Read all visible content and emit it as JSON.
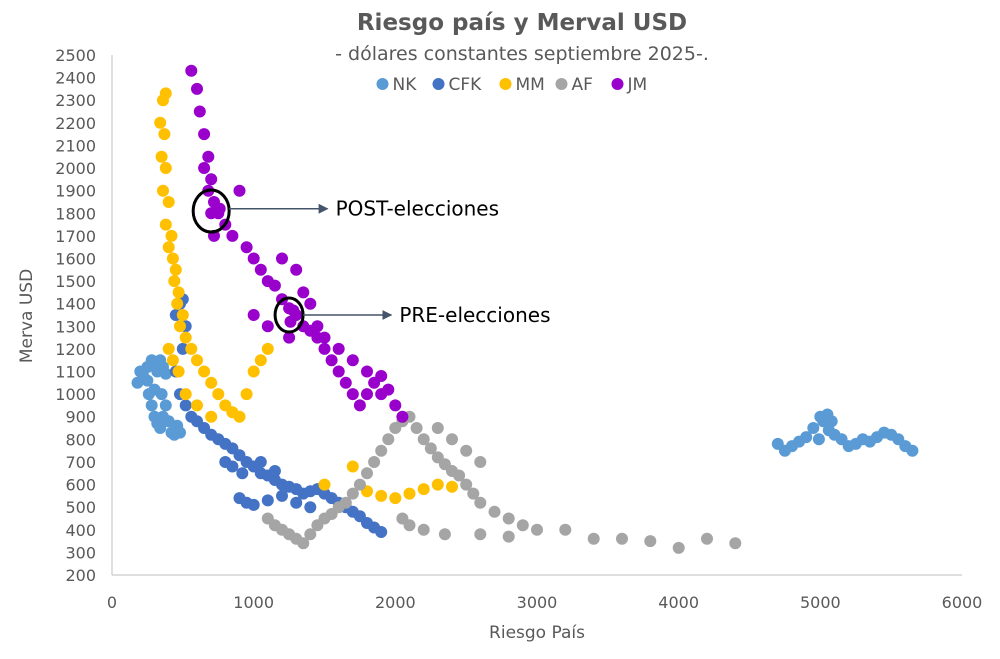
{
  "chart_data": {
    "type": "scatter",
    "title": "Riesgo país y Merval USD",
    "subtitle": "- dólares constantes septiembre 2025-.",
    "xlabel": "Riesgo País",
    "ylabel": "Merva USD",
    "xlim": [
      0,
      6000
    ],
    "ylim": [
      200,
      2500
    ],
    "xticks": [
      0,
      1000,
      2000,
      3000,
      4000,
      5000,
      6000
    ],
    "yticks": [
      200,
      300,
      400,
      500,
      600,
      700,
      800,
      900,
      1000,
      1100,
      1200,
      1300,
      1400,
      1500,
      1600,
      1700,
      1800,
      1900,
      2000,
      2100,
      2200,
      2300,
      2400,
      2500
    ],
    "grid": false,
    "legend_position": "top-center",
    "series": [
      {
        "name": "NK",
        "color": "#5B9BD5",
        "points": [
          [
            180,
            1050
          ],
          [
            200,
            1100
          ],
          [
            220,
            1080
          ],
          [
            250,
            1120
          ],
          [
            280,
            1150
          ],
          [
            300,
            1140
          ],
          [
            320,
            1100
          ],
          [
            340,
            1150
          ],
          [
            360,
            1120
          ],
          [
            380,
            1090
          ],
          [
            260,
            1000
          ],
          [
            280,
            950
          ],
          [
            300,
            900
          ],
          [
            320,
            870
          ],
          [
            340,
            850
          ],
          [
            360,
            900
          ],
          [
            380,
            950
          ],
          [
            400,
            880
          ],
          [
            420,
            830
          ],
          [
            440,
            820
          ],
          [
            460,
            860
          ],
          [
            480,
            830
          ],
          [
            300,
            1020
          ],
          [
            350,
            1000
          ],
          [
            250,
            1060
          ],
          [
            4700,
            780
          ],
          [
            4750,
            750
          ],
          [
            4800,
            770
          ],
          [
            4850,
            790
          ],
          [
            4900,
            810
          ],
          [
            4950,
            850
          ],
          [
            5000,
            900
          ],
          [
            5050,
            910
          ],
          [
            5080,
            880
          ],
          [
            5100,
            820
          ],
          [
            5150,
            800
          ],
          [
            5200,
            770
          ],
          [
            5250,
            780
          ],
          [
            5300,
            800
          ],
          [
            5350,
            790
          ],
          [
            5400,
            810
          ],
          [
            5450,
            830
          ],
          [
            5500,
            820
          ],
          [
            5550,
            800
          ],
          [
            5600,
            770
          ],
          [
            5650,
            750
          ],
          [
            5020,
            880
          ],
          [
            4990,
            800
          ],
          [
            5060,
            840
          ]
        ]
      },
      {
        "name": "CFK",
        "color": "#4472C4",
        "points": [
          [
            450,
            1350
          ],
          [
            480,
            1400
          ],
          [
            500,
            1420
          ],
          [
            520,
            1300
          ],
          [
            500,
            1200
          ],
          [
            450,
            1100
          ],
          [
            480,
            1000
          ],
          [
            520,
            950
          ],
          [
            560,
            900
          ],
          [
            600,
            880
          ],
          [
            650,
            850
          ],
          [
            700,
            820
          ],
          [
            750,
            800
          ],
          [
            800,
            780
          ],
          [
            850,
            760
          ],
          [
            900,
            730
          ],
          [
            950,
            700
          ],
          [
            1000,
            680
          ],
          [
            1050,
            650
          ],
          [
            1100,
            640
          ],
          [
            1150,
            620
          ],
          [
            1200,
            600
          ],
          [
            1250,
            590
          ],
          [
            1300,
            580
          ],
          [
            1350,
            560
          ],
          [
            1400,
            570
          ],
          [
            1450,
            580
          ],
          [
            1500,
            560
          ],
          [
            1550,
            540
          ],
          [
            1600,
            520
          ],
          [
            1650,
            500
          ],
          [
            1700,
            480
          ],
          [
            1750,
            460
          ],
          [
            1800,
            430
          ],
          [
            1850,
            410
          ],
          [
            1900,
            390
          ],
          [
            900,
            540
          ],
          [
            950,
            520
          ],
          [
            1000,
            510
          ],
          [
            1100,
            530
          ],
          [
            1200,
            550
          ],
          [
            1300,
            520
          ],
          [
            1400,
            500
          ],
          [
            800,
            700
          ],
          [
            850,
            680
          ],
          [
            920,
            650
          ],
          [
            1050,
            700
          ],
          [
            1150,
            660
          ]
        ]
      },
      {
        "name": "MM",
        "color": "#FFC000",
        "points": [
          [
            340,
            2200
          ],
          [
            360,
            2300
          ],
          [
            380,
            2330
          ],
          [
            370,
            2150
          ],
          [
            350,
            2050
          ],
          [
            380,
            2000
          ],
          [
            360,
            1900
          ],
          [
            400,
            1850
          ],
          [
            380,
            1750
          ],
          [
            420,
            1700
          ],
          [
            400,
            1650
          ],
          [
            430,
            1600
          ],
          [
            450,
            1550
          ],
          [
            440,
            1500
          ],
          [
            470,
            1450
          ],
          [
            460,
            1400
          ],
          [
            500,
            1350
          ],
          [
            480,
            1300
          ],
          [
            520,
            1250
          ],
          [
            560,
            1200
          ],
          [
            600,
            1150
          ],
          [
            650,
            1100
          ],
          [
            700,
            1050
          ],
          [
            750,
            1000
          ],
          [
            800,
            950
          ],
          [
            850,
            920
          ],
          [
            900,
            900
          ],
          [
            1000,
            1100
          ],
          [
            1100,
            1200
          ],
          [
            1050,
            1150
          ],
          [
            950,
            1000
          ],
          [
            1700,
            680
          ],
          [
            1500,
            600
          ],
          [
            1800,
            570
          ],
          [
            1900,
            550
          ],
          [
            2000,
            540
          ],
          [
            2100,
            560
          ],
          [
            2200,
            580
          ],
          [
            2300,
            600
          ],
          [
            2400,
            590
          ],
          [
            400,
            1200
          ],
          [
            430,
            1150
          ],
          [
            470,
            1100
          ],
          [
            520,
            1000
          ],
          [
            600,
            950
          ],
          [
            700,
            900
          ]
        ]
      },
      {
        "name": "AF",
        "color": "#A5A5A5",
        "points": [
          [
            1100,
            450
          ],
          [
            1150,
            420
          ],
          [
            1200,
            400
          ],
          [
            1250,
            380
          ],
          [
            1300,
            360
          ],
          [
            1350,
            340
          ],
          [
            1400,
            380
          ],
          [
            1450,
            420
          ],
          [
            1500,
            450
          ],
          [
            1550,
            470
          ],
          [
            1600,
            500
          ],
          [
            1650,
            520
          ],
          [
            1700,
            560
          ],
          [
            1750,
            600
          ],
          [
            1800,
            650
          ],
          [
            1850,
            700
          ],
          [
            1900,
            750
          ],
          [
            1950,
            800
          ],
          [
            2000,
            850
          ],
          [
            2050,
            880
          ],
          [
            2100,
            900
          ],
          [
            2150,
            850
          ],
          [
            2200,
            800
          ],
          [
            2250,
            760
          ],
          [
            2300,
            720
          ],
          [
            2350,
            690
          ],
          [
            2400,
            660
          ],
          [
            2450,
            640
          ],
          [
            2500,
            600
          ],
          [
            2550,
            560
          ],
          [
            2600,
            520
          ],
          [
            2700,
            480
          ],
          [
            2800,
            450
          ],
          [
            2900,
            420
          ],
          [
            3000,
            400
          ],
          [
            3200,
            400
          ],
          [
            3400,
            360
          ],
          [
            3600,
            360
          ],
          [
            3800,
            350
          ],
          [
            4000,
            320
          ],
          [
            4200,
            360
          ],
          [
            4400,
            340
          ],
          [
            2300,
            850
          ],
          [
            2400,
            800
          ],
          [
            2500,
            750
          ],
          [
            2600,
            700
          ],
          [
            2050,
            450
          ],
          [
            2100,
            420
          ],
          [
            2200,
            400
          ],
          [
            2350,
            380
          ],
          [
            2600,
            380
          ],
          [
            2800,
            370
          ]
        ]
      },
      {
        "name": "JM",
        "color": "#9900CC",
        "points": [
          [
            560,
            2430
          ],
          [
            600,
            2350
          ],
          [
            620,
            2250
          ],
          [
            650,
            2150
          ],
          [
            680,
            2050
          ],
          [
            700,
            1950
          ],
          [
            720,
            1850
          ],
          [
            750,
            1800
          ],
          [
            800,
            1750
          ],
          [
            850,
            1700
          ],
          [
            900,
            1900
          ],
          [
            950,
            1650
          ],
          [
            1000,
            1600
          ],
          [
            1050,
            1550
          ],
          [
            1100,
            1500
          ],
          [
            1150,
            1480
          ],
          [
            1200,
            1420
          ],
          [
            1250,
            1380
          ],
          [
            1300,
            1350
          ],
          [
            1350,
            1300
          ],
          [
            1400,
            1280
          ],
          [
            1450,
            1250
          ],
          [
            1500,
            1200
          ],
          [
            1550,
            1150
          ],
          [
            1600,
            1100
          ],
          [
            1650,
            1050
          ],
          [
            1700,
            1000
          ],
          [
            1750,
            950
          ],
          [
            1800,
            1000
          ],
          [
            1850,
            1050
          ],
          [
            1900,
            1080
          ],
          [
            1950,
            1020
          ],
          [
            2000,
            950
          ],
          [
            2050,
            900
          ],
          [
            1200,
            1600
          ],
          [
            1300,
            1550
          ],
          [
            1350,
            1450
          ],
          [
            1250,
            1250
          ],
          [
            1100,
            1300
          ],
          [
            1000,
            1350
          ],
          [
            1400,
            1400
          ],
          [
            1450,
            1300
          ],
          [
            1500,
            1250
          ],
          [
            1600,
            1200
          ],
          [
            1700,
            1150
          ],
          [
            1800,
            1100
          ],
          [
            1900,
            1000
          ],
          [
            700,
            1800
          ],
          [
            720,
            1700
          ],
          [
            680,
            1900
          ],
          [
            650,
            2000
          ],
          [
            760,
            1820
          ],
          [
            1280,
            1370
          ],
          [
            1260,
            1320
          ]
        ]
      }
    ],
    "annotations": [
      {
        "label": "POST-elecciones",
        "circle_at": [
          700,
          1810
        ],
        "arrow_to": [
          1550,
          1820
        ]
      },
      {
        "label": "PRE-elecciones",
        "circle_at": [
          1250,
          1350
        ],
        "arrow_to": [
          2000,
          1350
        ]
      }
    ]
  }
}
